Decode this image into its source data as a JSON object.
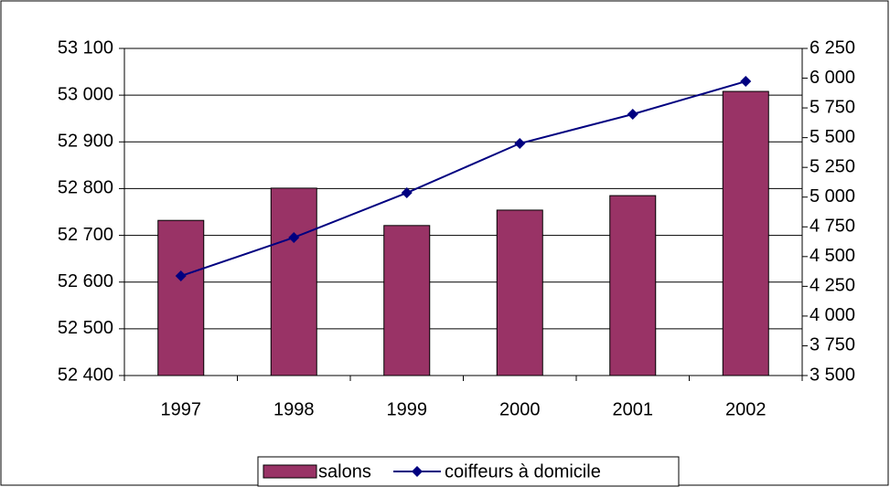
{
  "chart_data": {
    "type": "bar-line",
    "categories": [
      "1997",
      "1998",
      "1999",
      "2000",
      "2001",
      "2002"
    ],
    "series": [
      {
        "name": "salons",
        "type": "bar",
        "color": "#993366",
        "values": [
          52732,
          52801,
          52721,
          52754,
          52785,
          53008
        ]
      },
      {
        "name": "coiffeurs à domicile",
        "type": "line",
        "axis": "y2",
        "color": "#000080",
        "values": [
          4337,
          4660,
          5036,
          5451,
          5697,
          5973
        ]
      }
    ],
    "ylim": [
      52400,
      53100
    ],
    "yticks": [
      {
        "value": 52400,
        "label": "52 400"
      },
      {
        "value": 52500,
        "label": "52 500"
      },
      {
        "value": 52600,
        "label": "52 600"
      },
      {
        "value": 52700,
        "label": "52 700"
      },
      {
        "value": 52800,
        "label": "52 800"
      },
      {
        "value": 52900,
        "label": "52 900"
      },
      {
        "value": 53000,
        "label": "53 000"
      },
      {
        "value": 53100,
        "label": "53 100"
      }
    ],
    "y2lim": [
      3500,
      6250
    ],
    "y2ticks": [
      {
        "value": 3500,
        "label": "3 500"
      },
      {
        "value": 3750,
        "label": "3 750"
      },
      {
        "value": 4000,
        "label": "4 000"
      },
      {
        "value": 4250,
        "label": "4 250"
      },
      {
        "value": 4500,
        "label": "4 500"
      },
      {
        "value": 4750,
        "label": "4 750"
      },
      {
        "value": 5000,
        "label": "5 000"
      },
      {
        "value": 5250,
        "label": "5 250"
      },
      {
        "value": 5500,
        "label": "5 500"
      },
      {
        "value": 5750,
        "label": "5 750"
      },
      {
        "value": 6000,
        "label": "6 000"
      },
      {
        "value": 6250,
        "label": "6 250"
      }
    ],
    "grid": true,
    "legend": "bottom"
  }
}
